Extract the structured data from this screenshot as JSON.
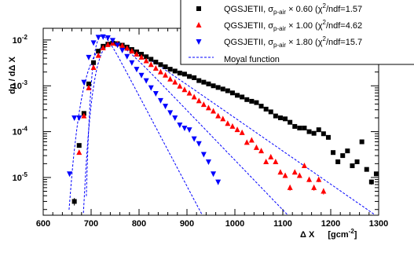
{
  "chart_data": {
    "type": "scatter",
    "title": "",
    "xlabel_main": "Δ X",
    "xlabel_unit": "[gcm",
    "xlabel_unit_exp": "-2",
    "xlabel_unit_close": "]",
    "ylabel": "dn / dΔ X",
    "xlim": [
      600,
      1300
    ],
    "ylim": [
      1.5e-06,
      0.018
    ],
    "y_scale": "log",
    "grid": false,
    "legend_position": "top-right",
    "x_ticks": [
      "600",
      "700",
      "800",
      "900",
      "1000",
      "1100",
      "1200",
      "1300"
    ],
    "y_ticks": [
      {
        "value": 1e-05,
        "base": "10",
        "exp": "-5"
      },
      {
        "value": 0.0001,
        "base": "10",
        "exp": "-4"
      },
      {
        "value": 0.001,
        "base": "10",
        "exp": "-3"
      },
      {
        "value": 0.01,
        "base": "10",
        "exp": "-2"
      }
    ],
    "series": [
      {
        "name": "QGSJETII, σp-air × 0.60 (χ²/ndf=1.57)",
        "legend": {
          "pre": "QGSJETII, σ",
          "sub": "p-air",
          "mid": " × 0.60 (χ",
          "sup": "2",
          "post": "/ndf=1.57"
        },
        "marker": "square",
        "color": "#000000",
        "x": [
          665,
          675,
          685,
          695,
          705,
          715,
          725,
          735,
          745,
          755,
          765,
          775,
          785,
          795,
          805,
          815,
          825,
          835,
          845,
          855,
          865,
          875,
          885,
          895,
          905,
          915,
          925,
          935,
          945,
          955,
          965,
          975,
          985,
          995,
          1005,
          1015,
          1025,
          1035,
          1045,
          1055,
          1065,
          1075,
          1085,
          1095,
          1105,
          1115,
          1125,
          1135,
          1145,
          1155,
          1165,
          1175,
          1185,
          1195,
          1205,
          1215,
          1225,
          1235,
          1245,
          1255,
          1265,
          1275,
          1285,
          1295
        ],
        "y": [
          3e-06,
          5e-05,
          0.00025,
          0.0011,
          0.0032,
          0.0057,
          0.0073,
          0.0081,
          0.0085,
          0.0083,
          0.0077,
          0.007,
          0.0062,
          0.0055,
          0.0049,
          0.0043,
          0.0038,
          0.0033,
          0.0029,
          0.0026,
          0.0023,
          0.0021,
          0.0019,
          0.0018,
          0.0016,
          0.0015,
          0.0013,
          0.0012,
          0.0011,
          0.001,
          0.00092,
          0.00085,
          0.00078,
          0.0007,
          0.00062,
          0.00057,
          0.0005,
          0.00046,
          0.00043,
          0.00036,
          0.00031,
          0.00027,
          0.00022,
          0.0002,
          0.00019,
          0.00016,
          0.00013,
          0.00012,
          0.00012,
          0.0001,
          9.2e-05,
          0.00011,
          9e-05,
          7.5e-05,
          3.5e-05,
          2.2e-05,
          3e-05,
          3.8e-05,
          1.8e-05,
          2.2e-05,
          6e-05,
          1.5e-05,
          8e-06,
          1.2e-05
        ]
      },
      {
        "name": "QGSJETII, σp-air × 1.00 (χ²/ndf=4.62)",
        "legend": {
          "pre": "QGSJETII, σ",
          "sub": "p-air",
          "mid": " × 1.00 (χ",
          "sup": "2",
          "post": "/ndf=4.62"
        },
        "marker": "triangle-up",
        "color": "#ff0000",
        "x": [
          675,
          685,
          695,
          705,
          715,
          725,
          735,
          745,
          755,
          765,
          775,
          785,
          795,
          805,
          815,
          825,
          835,
          845,
          855,
          865,
          875,
          885,
          895,
          905,
          915,
          925,
          935,
          945,
          955,
          965,
          975,
          985,
          995,
          1005,
          1015,
          1025,
          1035,
          1045,
          1055,
          1065,
          1075,
          1085,
          1095,
          1105,
          1115,
          1125,
          1135,
          1145,
          1155,
          1165,
          1175,
          1185
        ],
        "y": [
          3.5e-05,
          0.00022,
          0.0009,
          0.0025,
          0.0046,
          0.0067,
          0.0079,
          0.0085,
          0.0082,
          0.0075,
          0.0066,
          0.0057,
          0.0049,
          0.0042,
          0.0035,
          0.0029,
          0.0024,
          0.002,
          0.0017,
          0.0014,
          0.0012,
          0.00098,
          0.00082,
          0.00069,
          0.00057,
          0.00047,
          0.00039,
          0.00033,
          0.00028,
          0.00022,
          0.00019,
          0.00015,
          0.00013,
          0.00011,
          9.5e-05,
          5.8e-05,
          6.5e-05,
          4.5e-05,
          3.8e-05,
          2.2e-05,
          2.8e-05,
          2.2e-05,
          1.3e-05,
          1.1e-05,
          6e-06,
          1.3e-05,
          1.1e-05,
          1.8e-05,
          9e-06,
          6e-06,
          9e-06,
          5e-06
        ]
      },
      {
        "name": "QGSJETII, σp-air × 1.80 (χ²/ndf=15.7)",
        "legend": {
          "pre": "QGSJETII, σ",
          "sub": "p-air",
          "mid": " × 1.80 (χ",
          "sup": "2",
          "post": "/ndf=15.7"
        },
        "marker": "triangle-down",
        "color": "#0000ff",
        "x": [
          655,
          665,
          675,
          685,
          695,
          705,
          715,
          725,
          735,
          745,
          755,
          765,
          775,
          785,
          795,
          805,
          815,
          825,
          835,
          845,
          855,
          865,
          875,
          885,
          895,
          905,
          915,
          925,
          935,
          945,
          955,
          965
        ],
        "y": [
          1.2e-05,
          0.0002,
          0.0002,
          0.0012,
          0.0042,
          0.0087,
          0.0115,
          0.0118,
          0.0112,
          0.0098,
          0.0078,
          0.006,
          0.0044,
          0.0032,
          0.0023,
          0.0017,
          0.0013,
          0.00091,
          0.00068,
          0.00048,
          0.00036,
          0.00026,
          0.0002,
          0.00014,
          0.00012,
          0.00011,
          7e-05,
          5.5e-05,
          3.2e-05,
          2.2e-05,
          1.2e-05,
          8e-06
        ]
      }
    ],
    "fit_curves": {
      "name": "Moyal function",
      "style": "dashed",
      "color": "#0000ff",
      "curves": [
        {
          "for_series": 0,
          "peak_x": 745,
          "peak_y": 0.0085,
          "width": 30
        },
        {
          "for_series": 1,
          "peak_x": 745,
          "peak_y": 0.0085,
          "width": 20
        },
        {
          "for_series": 2,
          "peak_x": 723,
          "peak_y": 0.0122,
          "width": 11
        }
      ]
    }
  }
}
